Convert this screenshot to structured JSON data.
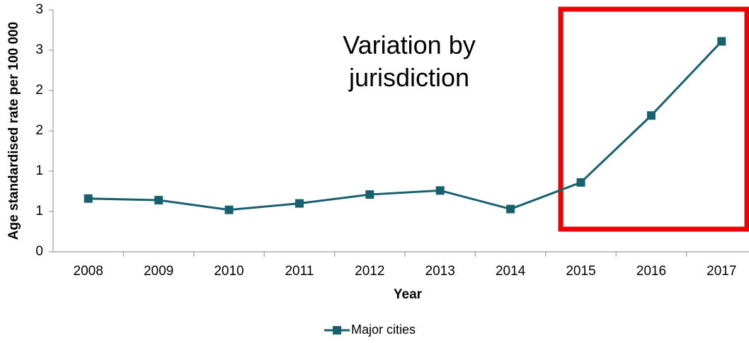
{
  "chart_data": {
    "type": "line",
    "annotation": "Variation by jurisdiction",
    "x_label": "Year",
    "y_label": "Age standardised rate per 100 000",
    "categories": [
      "2008",
      "2009",
      "2010",
      "2011",
      "2012",
      "2013",
      "2014",
      "2015",
      "2016",
      "2017"
    ],
    "series": [
      {
        "name": "Major cities",
        "color": "#17606e",
        "values": [
          0.66,
          0.64,
          0.52,
          0.6,
          0.71,
          0.76,
          0.53,
          0.86,
          1.69,
          2.61
        ]
      }
    ],
    "ylim": [
      0,
      3
    ],
    "yticks": [
      0,
      {
        "value": 0.5,
        "label": "1"
      },
      1,
      {
        "value": 1.5,
        "label": "2"
      },
      2,
      {
        "value": 2.5,
        "label": "3"
      },
      3
    ],
    "grid": false,
    "legend": "bottom"
  }
}
